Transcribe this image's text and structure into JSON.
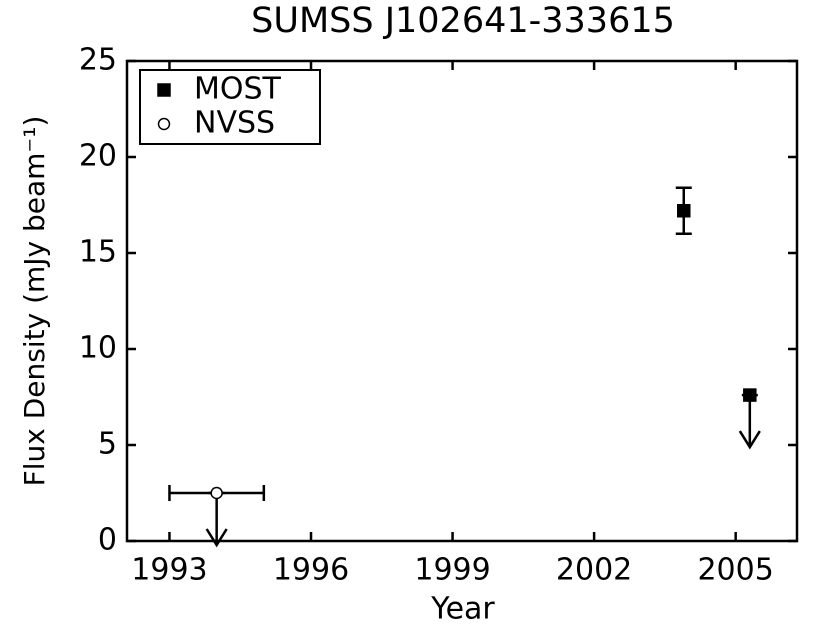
{
  "chart_data": {
    "type": "scatter",
    "title": "SUMSS J102641-333615",
    "xlabel": "Year",
    "ylabel": "Flux Density (mJy beam⁻¹)",
    "xlim": [
      1992.1,
      2006.3
    ],
    "xticks": [
      1993,
      1996,
      1999,
      2002,
      2005
    ],
    "ylim": [
      0,
      25
    ],
    "yticks": [
      0,
      5,
      10,
      15,
      20,
      25
    ],
    "legend": "upper left",
    "grid": false,
    "series": [
      {
        "name": "MOST",
        "color": "#000000",
        "marker": "square",
        "x": [
          2003.9,
          2005.3
        ],
        "values": [
          17.2,
          7.6
        ],
        "yerr": [
          1.2,
          null
        ],
        "upper_limits": [
          false,
          true
        ]
      },
      {
        "name": "NVSS",
        "color": "#ffffff",
        "marker": "circle",
        "x": [
          1994.0
        ],
        "values": [
          2.5
        ],
        "xerr": [
          1.0
        ],
        "upper_limits": [
          true
        ]
      }
    ]
  }
}
